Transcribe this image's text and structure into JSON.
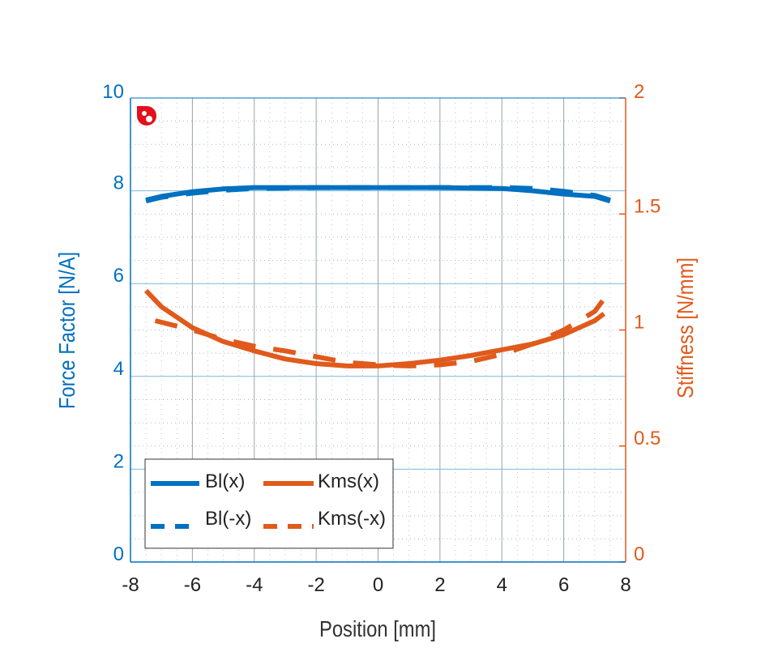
{
  "chart_data": {
    "type": "line",
    "xlabel": "Position [mm]",
    "ylabel": "Force Factor [N/A]",
    "y2label": "Stiffness [N/mm]",
    "xlim": [
      -8,
      8
    ],
    "ylim": [
      0,
      10
    ],
    "y2lim": [
      0,
      2
    ],
    "xticks": [
      "-8",
      "-6",
      "-4",
      "-2",
      "0",
      "2",
      "4",
      "6",
      "8"
    ],
    "yticks": [
      "0",
      "2",
      "4",
      "6",
      "8",
      "10"
    ],
    "y2ticks": [
      "0",
      "0.5",
      "1",
      "1.5",
      "2"
    ],
    "grid": true,
    "legend": "bottom-left",
    "colors": {
      "bl": "#0070c0",
      "kms": "#e05a1c",
      "logo": "#e3101c"
    },
    "series": [
      {
        "name": "Bl(x)",
        "axis": "left",
        "style": "solid",
        "x": [
          -7.5,
          -7,
          -6,
          -5,
          -4,
          -2,
          0,
          2,
          4,
          5,
          6,
          7,
          7.5
        ],
        "y": [
          7.8,
          7.88,
          7.98,
          8.04,
          8.07,
          8.07,
          8.07,
          8.07,
          8.05,
          8.0,
          7.93,
          7.88,
          7.78
        ]
      },
      {
        "name": "Bl(-x)",
        "axis": "left",
        "style": "dashed",
        "x": [
          -7.5,
          -7,
          -6,
          -5,
          -4,
          -2,
          0,
          2,
          4,
          5,
          6,
          7,
          7.5
        ],
        "y": [
          7.78,
          7.86,
          7.95,
          8.01,
          8.05,
          8.07,
          8.07,
          8.07,
          8.07,
          8.05,
          7.99,
          7.9,
          7.8
        ]
      },
      {
        "name": "Kms(x)",
        "axis": "right",
        "style": "solid",
        "x": [
          -7.5,
          -7,
          -6,
          -5,
          -4,
          -3,
          -2,
          -1,
          0,
          1,
          2,
          3,
          4,
          5,
          6,
          7,
          7.3
        ],
        "y": [
          1.17,
          1.1,
          1.01,
          0.95,
          0.91,
          0.875,
          0.855,
          0.845,
          0.845,
          0.855,
          0.87,
          0.89,
          0.915,
          0.94,
          0.98,
          1.04,
          1.07
        ]
      },
      {
        "name": "Kms(-x)",
        "axis": "right",
        "style": "dashed",
        "x": [
          -7.2,
          -6,
          -5,
          -4,
          -3,
          -2,
          -1,
          0,
          1,
          2,
          3,
          4,
          5,
          6,
          7,
          7.5
        ],
        "y": [
          1.04,
          1.0,
          0.96,
          0.93,
          0.91,
          0.885,
          0.86,
          0.85,
          0.845,
          0.85,
          0.865,
          0.895,
          0.94,
          1.0,
          1.08,
          1.17
        ]
      }
    ]
  }
}
